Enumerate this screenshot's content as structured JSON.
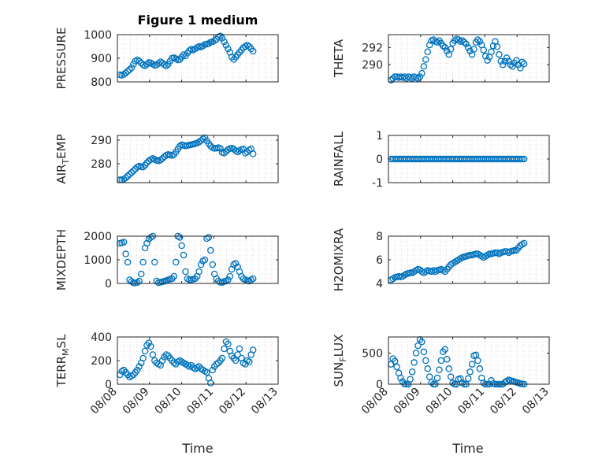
{
  "figure": {
    "title": "Figure 1 medium",
    "xlabel": "Time"
  },
  "colors": {
    "marker": "#0072BD",
    "axis": "#262626",
    "grid": "#d0d0d0"
  },
  "chart_data": [
    {
      "type": "scatter",
      "ylabel": "PRESSURE",
      "ylim": [
        800,
        1000
      ],
      "yticks": [
        "800",
        "900",
        "1000"
      ],
      "xlim": [
        0,
        5
      ],
      "xticks": [
        "08/08",
        "08/09",
        "08/10",
        "08/11",
        "08/12",
        "08/13"
      ],
      "grid": "dotted",
      "x": [
        0.08,
        0.14,
        0.2,
        0.26,
        0.32,
        0.38,
        0.44,
        0.5,
        0.56,
        0.62,
        0.68,
        0.74,
        0.8,
        0.86,
        0.92,
        0.98,
        1.04,
        1.1,
        1.16,
        1.22,
        1.28,
        1.34,
        1.4,
        1.46,
        1.52,
        1.58,
        1.64,
        1.7,
        1.76,
        1.82,
        1.88,
        1.94,
        2.0,
        2.06,
        2.12,
        2.18,
        2.24,
        2.3,
        2.36,
        2.42,
        2.48,
        2.54,
        2.6,
        2.66,
        2.72,
        2.78,
        2.84,
        2.9,
        2.96,
        3.02,
        3.08,
        3.14,
        3.2,
        3.26,
        3.32,
        3.38,
        3.44,
        3.5,
        3.56,
        3.62,
        3.68,
        3.74,
        3.8,
        3.86,
        3.92,
        3.98,
        4.04,
        4.1,
        4.16,
        4.22
      ],
      "y": [
        830,
        828,
        832,
        838,
        845,
        852,
        860,
        875,
        888,
        893,
        888,
        880,
        872,
        868,
        875,
        882,
        880,
        875,
        870,
        872,
        878,
        885,
        880,
        872,
        868,
        875,
        888,
        900,
        902,
        898,
        893,
        895,
        905,
        915,
        910,
        922,
        932,
        938,
        935,
        940,
        945,
        950,
        948,
        952,
        958,
        960,
        962,
        968,
        970,
        975,
        980,
        990,
        994,
        985,
        970,
        955,
        940,
        925,
        905,
        895,
        905,
        915,
        925,
        935,
        945,
        950,
        955,
        950,
        940,
        930
      ]
    },
    {
      "type": "scatter",
      "ylabel": "THETA",
      "ylim": [
        288,
        293.5
      ],
      "yticks": [
        "290",
        "292"
      ],
      "xlim": [
        0,
        5
      ],
      "xticks": [
        "08/08",
        "08/09",
        "08/10",
        "08/11",
        "08/12",
        "08/13"
      ],
      "grid": "dotted",
      "x": [
        0.08,
        0.14,
        0.2,
        0.26,
        0.32,
        0.38,
        0.44,
        0.5,
        0.56,
        0.62,
        0.68,
        0.74,
        0.8,
        0.86,
        0.92,
        0.98,
        1.04,
        1.1,
        1.16,
        1.22,
        1.28,
        1.34,
        1.4,
        1.46,
        1.52,
        1.58,
        1.64,
        1.7,
        1.76,
        1.82,
        1.88,
        1.94,
        2.0,
        2.06,
        2.12,
        2.18,
        2.24,
        2.3,
        2.36,
        2.42,
        2.48,
        2.54,
        2.6,
        2.66,
        2.72,
        2.78,
        2.84,
        2.9,
        2.96,
        3.02,
        3.08,
        3.14,
        3.2,
        3.26,
        3.32,
        3.38,
        3.44,
        3.5,
        3.56,
        3.62,
        3.68,
        3.74,
        3.8,
        3.86,
        3.92,
        3.98,
        4.04,
        4.1,
        4.16,
        4.22
      ],
      "y": [
        288.2,
        288.4,
        288.6,
        288.6,
        288.5,
        288.6,
        288.5,
        288.6,
        288.4,
        288.6,
        288.5,
        288.4,
        288.6,
        288.5,
        288.4,
        288.6,
        289.0,
        289.8,
        290.6,
        291.5,
        292.3,
        292.8,
        292.9,
        292.7,
        292.6,
        292.8,
        292.5,
        292.2,
        292.0,
        291.6,
        291.2,
        291.8,
        292.5,
        292.8,
        293.0,
        292.9,
        292.7,
        292.8,
        292.6,
        292.4,
        292.0,
        291.6,
        291.2,
        291.8,
        292.6,
        292.9,
        292.7,
        292.3,
        291.7,
        291.0,
        290.5,
        290.9,
        291.5,
        292.2,
        292.7,
        292.1,
        291.2,
        290.4,
        290.0,
        290.4,
        290.8,
        290.4,
        290.0,
        289.8,
        290.2,
        290.5,
        290.0,
        289.6,
        290.3,
        290.1
      ]
    },
    {
      "type": "scatter",
      "ylabel": "AIR_TEMP",
      "ylim": [
        272,
        292
      ],
      "yticks": [
        "280",
        "290"
      ],
      "xlim": [
        0,
        5
      ],
      "xticks": [
        "08/08",
        "08/09",
        "08/10",
        "08/11",
        "08/12",
        "08/13"
      ],
      "grid": "dotted",
      "x": [
        0.08,
        0.14,
        0.2,
        0.26,
        0.32,
        0.38,
        0.44,
        0.5,
        0.56,
        0.62,
        0.68,
        0.74,
        0.8,
        0.86,
        0.92,
        0.98,
        1.04,
        1.1,
        1.16,
        1.22,
        1.28,
        1.34,
        1.4,
        1.46,
        1.52,
        1.58,
        1.64,
        1.7,
        1.76,
        1.82,
        1.88,
        1.94,
        2.0,
        2.06,
        2.12,
        2.18,
        2.24,
        2.3,
        2.36,
        2.42,
        2.48,
        2.54,
        2.6,
        2.66,
        2.72,
        2.78,
        2.84,
        2.9,
        2.96,
        3.02,
        3.08,
        3.14,
        3.2,
        3.26,
        3.32,
        3.38,
        3.44,
        3.5,
        3.56,
        3.62,
        3.68,
        3.74,
        3.8,
        3.86,
        3.92,
        3.98,
        4.04,
        4.1,
        4.16,
        4.22
      ],
      "y": [
        273.2,
        273.2,
        273.5,
        274,
        274.8,
        275.6,
        276.3,
        277,
        277.8,
        278.6,
        279,
        278.7,
        278.6,
        279.4,
        280.4,
        281.2,
        281.8,
        282.2,
        281.8,
        281.4,
        281.2,
        281.6,
        282.2,
        283,
        283.6,
        283.9,
        283.7,
        283.5,
        283.9,
        285,
        286.2,
        287.4,
        288,
        287.8,
        287.6,
        287.7,
        287.9,
        288.1,
        288.3,
        288.5,
        288.8,
        289.2,
        289.8,
        290.5,
        291,
        289.8,
        288.6,
        287.5,
        286.8,
        286.5,
        286.6,
        286.8,
        286.5,
        284.8,
        284.5,
        285.2,
        286,
        286.4,
        286.6,
        286.2,
        285.5,
        285,
        285.6,
        286,
        286.2,
        284.5,
        285,
        285.8,
        286.3,
        284.2
      ]
    },
    {
      "type": "scatter",
      "ylabel": "RAINFALL",
      "ylim": [
        -1,
        1
      ],
      "yticks": [
        "-1",
        "0",
        "1"
      ],
      "xlim": [
        0,
        5
      ],
      "xticks": [
        "08/08",
        "08/09",
        "08/10",
        "08/11",
        "08/12",
        "08/13"
      ],
      "grid": "dotted",
      "x": [
        0.08,
        0.14,
        0.2,
        0.26,
        0.32,
        0.38,
        0.44,
        0.5,
        0.56,
        0.62,
        0.68,
        0.74,
        0.8,
        0.86,
        0.92,
        0.98,
        1.04,
        1.1,
        1.16,
        1.22,
        1.28,
        1.34,
        1.4,
        1.46,
        1.52,
        1.58,
        1.64,
        1.7,
        1.76,
        1.82,
        1.88,
        1.94,
        2.0,
        2.06,
        2.12,
        2.18,
        2.24,
        2.3,
        2.36,
        2.42,
        2.48,
        2.54,
        2.6,
        2.66,
        2.72,
        2.78,
        2.84,
        2.9,
        2.96,
        3.02,
        3.08,
        3.14,
        3.2,
        3.26,
        3.32,
        3.38,
        3.44,
        3.5,
        3.56,
        3.62,
        3.68,
        3.74,
        3.8,
        3.86,
        3.92,
        3.98,
        4.04,
        4.1,
        4.16,
        4.22
      ],
      "y": [
        0,
        0,
        0,
        0,
        0,
        0,
        0,
        0,
        0,
        0,
        0,
        0,
        0,
        0,
        0,
        0,
        0,
        0,
        0,
        0,
        0,
        0,
        0,
        0,
        0,
        0,
        0,
        0,
        0,
        0,
        0,
        0,
        0,
        0,
        0,
        0,
        0,
        0,
        0,
        0,
        0,
        0,
        0,
        0,
        0,
        0,
        0,
        0,
        0,
        0,
        0,
        0,
        0,
        0,
        0,
        0,
        0,
        0,
        0,
        0,
        0,
        0,
        0,
        0,
        0,
        0,
        0,
        0,
        0,
        0
      ]
    },
    {
      "type": "scatter",
      "ylabel": "MIXDEPTH",
      "ylim": [
        0,
        2000
      ],
      "yticks": [
        "0",
        "1000",
        "2000"
      ],
      "xlim": [
        0,
        5
      ],
      "xticks": [
        "08/08",
        "08/09",
        "08/10",
        "08/11",
        "08/12",
        "08/13"
      ],
      "grid": "dotted",
      "x": [
        0.08,
        0.14,
        0.2,
        0.26,
        0.32,
        0.38,
        0.44,
        0.5,
        0.56,
        0.62,
        0.68,
        0.74,
        0.8,
        0.86,
        0.92,
        0.98,
        1.04,
        1.1,
        1.16,
        1.22,
        1.28,
        1.34,
        1.4,
        1.46,
        1.52,
        1.58,
        1.64,
        1.7,
        1.76,
        1.82,
        1.88,
        1.94,
        2.0,
        2.06,
        2.12,
        2.18,
        2.24,
        2.3,
        2.36,
        2.42,
        2.48,
        2.54,
        2.6,
        2.66,
        2.72,
        2.78,
        2.84,
        2.9,
        2.96,
        3.02,
        3.08,
        3.14,
        3.2,
        3.26,
        3.32,
        3.38,
        3.44,
        3.5,
        3.56,
        3.62,
        3.68,
        3.74,
        3.8,
        3.86,
        3.92,
        3.98,
        4.04,
        4.1,
        4.16,
        4.22
      ],
      "y": [
        1700,
        1720,
        1750,
        1250,
        900,
        150,
        80,
        30,
        20,
        40,
        100,
        400,
        900,
        1500,
        1700,
        1880,
        1950,
        2000,
        900,
        100,
        30,
        50,
        70,
        90,
        120,
        150,
        180,
        200,
        300,
        900,
        2000,
        1950,
        1600,
        1200,
        500,
        200,
        150,
        160,
        180,
        200,
        300,
        500,
        800,
        950,
        1000,
        1900,
        1950,
        1400,
        800,
        400,
        200,
        100,
        50,
        40,
        80,
        100,
        150,
        300,
        600,
        800,
        850,
        700,
        500,
        300,
        200,
        150,
        120,
        100,
        150,
        200
      ]
    },
    {
      "type": "scatter",
      "ylabel": "H2OMIXRA",
      "ylim": [
        4,
        8
      ],
      "yticks": [
        "4",
        "6",
        "8"
      ],
      "xlim": [
        0,
        5
      ],
      "xticks": [
        "08/08",
        "08/09",
        "08/10",
        "08/11",
        "08/12",
        "08/13"
      ],
      "grid": "dotted",
      "x": [
        0.08,
        0.14,
        0.2,
        0.26,
        0.32,
        0.38,
        0.44,
        0.5,
        0.56,
        0.62,
        0.68,
        0.74,
        0.8,
        0.86,
        0.92,
        0.98,
        1.04,
        1.1,
        1.16,
        1.22,
        1.28,
        1.34,
        1.4,
        1.46,
        1.52,
        1.58,
        1.64,
        1.7,
        1.76,
        1.82,
        1.88,
        1.94,
        2.0,
        2.06,
        2.12,
        2.18,
        2.24,
        2.3,
        2.36,
        2.42,
        2.48,
        2.54,
        2.6,
        2.66,
        2.72,
        2.78,
        2.84,
        2.9,
        2.96,
        3.02,
        3.08,
        3.14,
        3.2,
        3.26,
        3.32,
        3.38,
        3.44,
        3.5,
        3.56,
        3.62,
        3.68,
        3.74,
        3.8,
        3.86,
        3.92,
        3.98,
        4.04,
        4.1,
        4.16,
        4.22
      ],
      "y": [
        4.3,
        4.4,
        4.5,
        4.55,
        4.6,
        4.55,
        4.6,
        4.7,
        4.8,
        4.85,
        4.9,
        4.9,
        5.0,
        5.1,
        5.2,
        5.15,
        5.0,
        4.9,
        5.0,
        5.1,
        5.05,
        5.0,
        5.1,
        5.0,
        5.1,
        5.15,
        5.2,
        5.1,
        5.0,
        5.2,
        5.4,
        5.6,
        5.7,
        5.8,
        5.9,
        6.0,
        6.1,
        6.2,
        6.25,
        6.3,
        6.35,
        6.4,
        6.4,
        6.45,
        6.5,
        6.5,
        6.4,
        6.3,
        6.2,
        6.3,
        6.4,
        6.5,
        6.5,
        6.55,
        6.6,
        6.6,
        6.5,
        6.6,
        6.65,
        6.7,
        6.7,
        6.6,
        6.7,
        6.75,
        6.8,
        6.8,
        7.0,
        7.2,
        7.3,
        7.4
      ]
    },
    {
      "type": "scatter",
      "ylabel": "TERR_MSL",
      "ylim": [
        0,
        400
      ],
      "yticks": [
        "0",
        "200",
        "400"
      ],
      "xlim": [
        0,
        5
      ],
      "xticks": [
        "08/08",
        "08/09",
        "08/10",
        "08/11",
        "08/12",
        "08/13"
      ],
      "grid": "dotted",
      "x": [
        0.08,
        0.14,
        0.2,
        0.26,
        0.32,
        0.38,
        0.44,
        0.5,
        0.56,
        0.62,
        0.68,
        0.74,
        0.8,
        0.86,
        0.92,
        0.98,
        1.04,
        1.1,
        1.16,
        1.22,
        1.28,
        1.34,
        1.4,
        1.46,
        1.52,
        1.58,
        1.64,
        1.7,
        1.76,
        1.82,
        1.88,
        1.94,
        2.0,
        2.06,
        2.12,
        2.18,
        2.24,
        2.3,
        2.36,
        2.42,
        2.48,
        2.54,
        2.6,
        2.66,
        2.72,
        2.78,
        2.84,
        2.9,
        2.96,
        3.02,
        3.08,
        3.14,
        3.2,
        3.26,
        3.32,
        3.38,
        3.44,
        3.5,
        3.56,
        3.62,
        3.68,
        3.74,
        3.8,
        3.86,
        3.92,
        3.98,
        4.04,
        4.1,
        4.16,
        4.22
      ],
      "y": [
        80,
        110,
        120,
        100,
        80,
        60,
        70,
        80,
        100,
        120,
        150,
        180,
        220,
        280,
        330,
        350,
        320,
        250,
        200,
        180,
        170,
        160,
        200,
        230,
        250,
        240,
        220,
        200,
        180,
        170,
        190,
        200,
        190,
        180,
        170,
        160,
        150,
        160,
        140,
        130,
        140,
        150,
        130,
        120,
        110,
        100,
        50,
        10,
        120,
        150,
        170,
        180,
        200,
        220,
        300,
        360,
        340,
        280,
        240,
        220,
        200,
        250,
        300,
        220,
        180,
        170,
        200,
        190,
        250,
        290
      ]
    },
    {
      "type": "scatter",
      "ylabel": "SUN_FLUX",
      "ylim": [
        0,
        760
      ],
      "yticks": [
        "0",
        "500"
      ],
      "xlim": [
        0,
        5
      ],
      "xticks": [
        "08/08",
        "08/09",
        "08/10",
        "08/11",
        "08/12",
        "08/13"
      ],
      "grid": "dotted",
      "x": [
        0.08,
        0.14,
        0.2,
        0.26,
        0.32,
        0.38,
        0.44,
        0.5,
        0.56,
        0.62,
        0.68,
        0.74,
        0.8,
        0.86,
        0.92,
        0.98,
        1.04,
        1.1,
        1.16,
        1.22,
        1.28,
        1.34,
        1.4,
        1.46,
        1.52,
        1.58,
        1.64,
        1.7,
        1.76,
        1.82,
        1.88,
        1.94,
        2.0,
        2.06,
        2.12,
        2.18,
        2.24,
        2.3,
        2.36,
        2.42,
        2.48,
        2.54,
        2.6,
        2.66,
        2.72,
        2.78,
        2.84,
        2.9,
        2.96,
        3.02,
        3.08,
        3.14,
        3.2,
        3.26,
        3.32,
        3.38,
        3.44,
        3.5,
        3.56,
        3.62,
        3.68,
        3.74,
        3.8,
        3.86,
        3.92,
        3.98,
        4.04,
        4.1,
        4.16,
        4.22
      ],
      "y": [
        320,
        410,
        370,
        280,
        180,
        100,
        40,
        5,
        0,
        0,
        80,
        200,
        350,
        500,
        620,
        720,
        680,
        520,
        380,
        250,
        120,
        30,
        0,
        0,
        100,
        230,
        380,
        520,
        560,
        400,
        250,
        120,
        20,
        0,
        0,
        80,
        90,
        20,
        0,
        0,
        90,
        200,
        320,
        460,
        470,
        380,
        250,
        100,
        20,
        0,
        0,
        0,
        60,
        10,
        0,
        0,
        0,
        0,
        0,
        30,
        50,
        70,
        60,
        50,
        40,
        30,
        20,
        10,
        5,
        0
      ]
    }
  ]
}
